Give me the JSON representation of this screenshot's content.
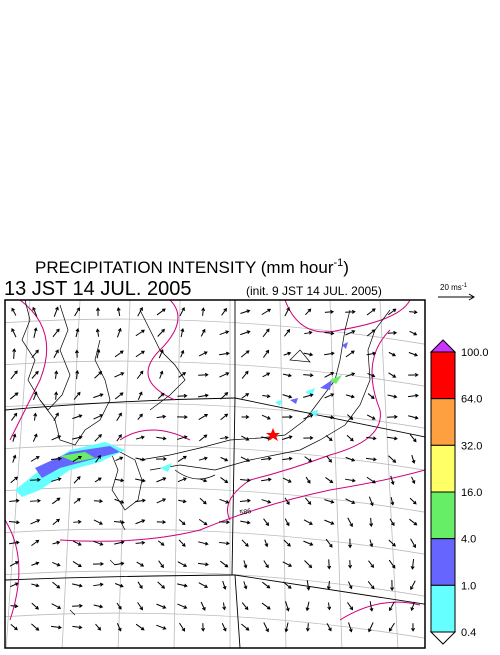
{
  "header": {
    "title": "PRECIPITATION INTENSITY (mm hour",
    "title_sup": "-1",
    "title_end": ")",
    "valid_time": "13 JST 14 JUL. 2005",
    "init_time": "(init. 9 JST 14 JUL. 2005)"
  },
  "wind_scale": {
    "label": "20 ms",
    "label_sup": "-1"
  },
  "contour_labels": [
    "586"
  ],
  "colorbar": {
    "levels": [
      "100.0",
      "64.0",
      "32.0",
      "16.0",
      "4.0",
      "1.0",
      "0.4"
    ],
    "colors": [
      "#ff0000",
      "#ffa040",
      "#ffff66",
      "#66ee66",
      "#6666ff",
      "#66ffff"
    ],
    "over_color": "#cc33ff",
    "under_color": "#ffffff"
  }
}
